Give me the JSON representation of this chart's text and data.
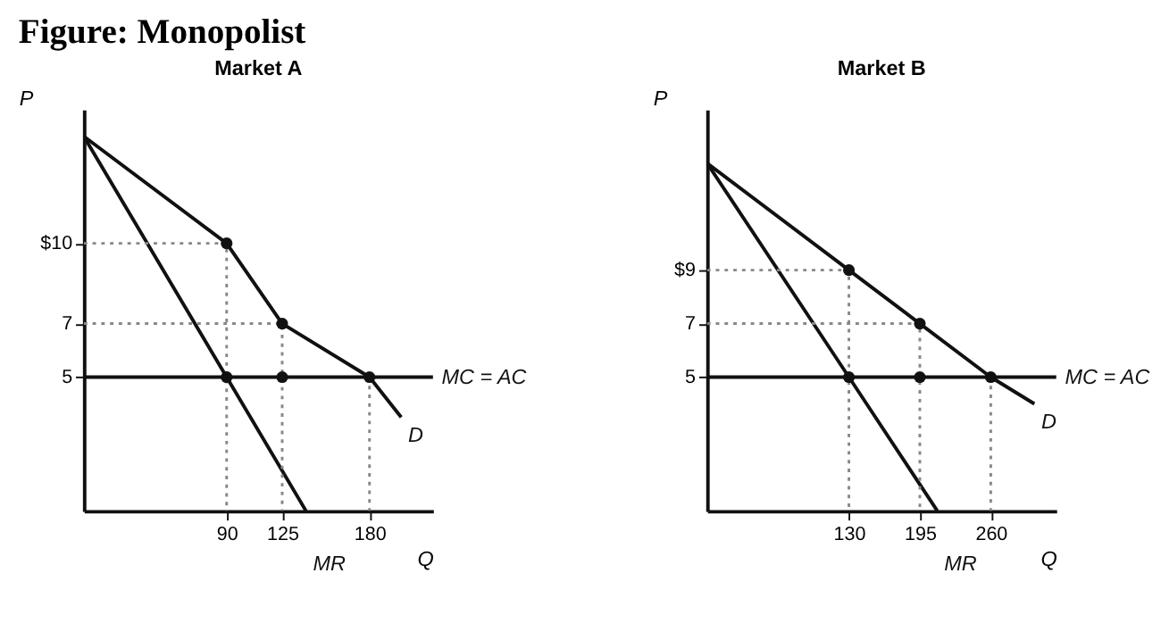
{
  "chart_data": [
    {
      "type": "line",
      "title": "Market A",
      "annotations": [
        "Figure: Monopolist"
      ],
      "xlabel": "Q",
      "ylabel": "P",
      "xlim": [
        0,
        220
      ],
      "ylim": [
        0,
        15
      ],
      "xticks": [
        90,
        125,
        180
      ],
      "yticks": [
        {
          "value": 10,
          "label": "$10"
        },
        7,
        5
      ],
      "grid": false,
      "ref_lines": [
        {
          "axis": "y",
          "value": 5,
          "label": "MC = AC",
          "color": "#111111",
          "line_style": "solid"
        }
      ],
      "series": [
        {
          "name": "D",
          "color": "#111111",
          "x": [
            0,
            90,
            125,
            180,
            200
          ],
          "values": [
            14,
            10,
            7,
            5,
            3.5
          ]
        },
        {
          "name": "MR",
          "color": "#111111",
          "x": [
            0,
            90,
            140
          ],
          "values": [
            14,
            5,
            0
          ]
        },
        {
          "color": "#888888",
          "line_style": "dotted",
          "x": [
            0,
            90,
            90
          ],
          "values": [
            10,
            10,
            0
          ]
        },
        {
          "color": "#888888",
          "line_style": "dotted",
          "x": [
            0,
            125,
            125
          ],
          "values": [
            7,
            7,
            0
          ]
        },
        {
          "color": "#888888",
          "line_style": "dotted",
          "x": [
            180,
            180
          ],
          "values": [
            5,
            0
          ]
        },
        {
          "type": "scatter",
          "color": "#111111",
          "x": [
            90,
            125,
            90,
            125,
            180
          ],
          "values": [
            10,
            7,
            5,
            5,
            5
          ]
        }
      ]
    },
    {
      "type": "line",
      "title": "Market B",
      "xlabel": "Q",
      "ylabel": "P",
      "xlim": [
        0,
        320
      ],
      "ylim": [
        0,
        15
      ],
      "xticks": [
        130,
        195,
        260
      ],
      "yticks": [
        {
          "value": 9,
          "label": "$9"
        },
        7,
        5
      ],
      "grid": false,
      "ref_lines": [
        {
          "axis": "y",
          "value": 5,
          "label": "MC = AC",
          "color": "#111111",
          "line_style": "solid"
        }
      ],
      "series": [
        {
          "name": "D",
          "color": "#111111",
          "x": [
            0,
            130,
            195,
            260,
            300
          ],
          "values": [
            13,
            9,
            7,
            5,
            4
          ]
        },
        {
          "name": "MR",
          "color": "#111111",
          "x": [
            0,
            130,
            211
          ],
          "values": [
            13,
            5,
            0
          ]
        },
        {
          "color": "#888888",
          "line_style": "dotted",
          "x": [
            0,
            130,
            130
          ],
          "values": [
            9,
            9,
            0
          ]
        },
        {
          "color": "#888888",
          "line_style": "dotted",
          "x": [
            0,
            195,
            195
          ],
          "values": [
            7,
            7,
            0
          ]
        },
        {
          "color": "#888888",
          "line_style": "dotted",
          "x": [
            260,
            260
          ],
          "values": [
            5,
            0
          ]
        },
        {
          "type": "scatter",
          "color": "#111111",
          "x": [
            130,
            195,
            130,
            195,
            260
          ],
          "values": [
            9,
            7,
            5,
            5,
            5
          ]
        }
      ]
    }
  ]
}
